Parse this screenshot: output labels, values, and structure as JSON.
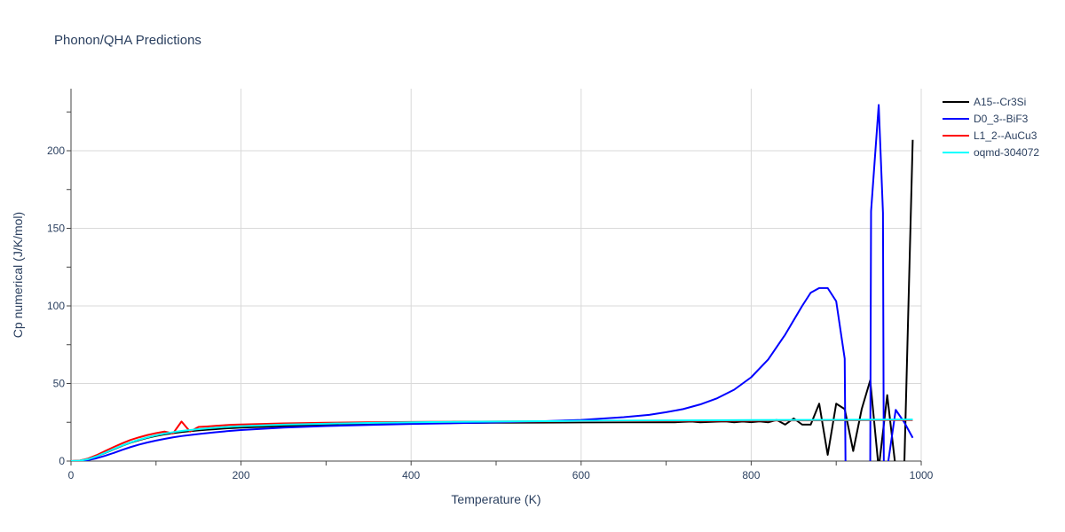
{
  "chart_data": {
    "type": "line",
    "title": "Phonon/QHA Predictions",
    "xlabel": "Temperature (K)",
    "ylabel": "Cp numerical (J/K/mol)",
    "xlim": [
      0,
      1000
    ],
    "ylim": [
      0,
      240
    ],
    "xticks": [
      0,
      200,
      400,
      600,
      800,
      1000
    ],
    "yticks": [
      0,
      50,
      100,
      150,
      200
    ],
    "grid": true,
    "legend_position": "right",
    "series": [
      {
        "name": "A15--Cr3Si",
        "color": "#000000",
        "x": [
          0,
          10,
          20,
          30,
          40,
          50,
          60,
          70,
          80,
          90,
          100,
          110,
          120,
          130,
          140,
          150,
          160,
          170,
          180,
          190,
          200,
          250,
          300,
          350,
          400,
          450,
          500,
          550,
          600,
          650,
          700,
          710,
          720,
          730,
          740,
          750,
          760,
          770,
          780,
          790,
          800,
          810,
          820,
          830,
          840,
          850,
          860,
          870,
          880,
          890,
          900,
          910,
          920,
          930,
          940,
          950,
          960,
          970,
          980,
          990
        ],
        "y": [
          0,
          0.2,
          1.2,
          3.0,
          5.2,
          7.5,
          9.8,
          11.8,
          13.5,
          15.0,
          16.2,
          17.2,
          18.0,
          18.7,
          19.3,
          19.8,
          20.2,
          20.6,
          21.0,
          21.3,
          21.6,
          22.6,
          23.3,
          23.8,
          24.2,
          24.5,
          24.7,
          24.8,
          24.9,
          25.0,
          25.1,
          25.0,
          25.3,
          25.5,
          25.0,
          25.2,
          25.4,
          25.6,
          25.0,
          25.5,
          25.1,
          25.6,
          25.0,
          26.5,
          23.5,
          27.5,
          23.5,
          23.5,
          37.0,
          4.0,
          37.0,
          33.5,
          6.5,
          33.5,
          52.0,
          -5.0,
          42.5,
          -5.0,
          -5.0,
          207.0
        ]
      },
      {
        "name": "D0_3--BiF3",
        "color": "#0000ff",
        "x": [
          0,
          10,
          20,
          30,
          40,
          50,
          60,
          70,
          80,
          90,
          100,
          110,
          120,
          130,
          140,
          150,
          160,
          170,
          180,
          190,
          200,
          250,
          300,
          350,
          400,
          450,
          500,
          550,
          600,
          650,
          680,
          700,
          720,
          740,
          760,
          780,
          800,
          820,
          840,
          860,
          870,
          880,
          890,
          900,
          910,
          911,
          940,
          941,
          950,
          955,
          956,
          960,
          970,
          980,
          990
        ],
        "y": [
          0,
          0.1,
          0.6,
          1.8,
          3.4,
          5.2,
          7.2,
          9.0,
          10.6,
          12.0,
          13.2,
          14.3,
          15.3,
          16.1,
          16.8,
          17.4,
          18.0,
          18.6,
          19.1,
          19.6,
          20.0,
          21.6,
          22.6,
          23.3,
          23.9,
          24.4,
          24.9,
          25.6,
          26.5,
          28.3,
          29.8,
          31.5,
          33.5,
          36.5,
          40.5,
          46.0,
          54.0,
          65.5,
          81.5,
          100.0,
          108.5,
          111.5,
          111.5,
          103.0,
          66.0,
          -5.0,
          -5.0,
          161.0,
          229.5,
          160.0,
          -5.0,
          -5.0,
          33.0,
          25.0,
          15.0
        ]
      },
      {
        "name": "L1_2--AuCu3",
        "color": "#ff0000",
        "x": [
          0,
          10,
          20,
          30,
          40,
          50,
          60,
          70,
          80,
          90,
          100,
          110,
          120,
          130,
          140,
          150,
          160,
          170,
          180,
          190,
          200,
          250,
          300,
          350,
          400,
          450,
          500,
          550,
          600,
          650,
          700,
          750,
          800,
          850,
          900,
          950,
          990
        ],
        "y": [
          0,
          0.3,
          1.6,
          3.8,
          6.4,
          9.0,
          11.4,
          13.6,
          15.3,
          16.8,
          18.0,
          19.0,
          17.8,
          25.5,
          19.0,
          22.0,
          22.3,
          22.7,
          23.1,
          23.4,
          23.6,
          24.3,
          24.7,
          25.0,
          25.2,
          25.4,
          25.5,
          25.6,
          25.7,
          25.8,
          25.9,
          26.0,
          26.1,
          26.2,
          26.3,
          26.4,
          26.4
        ]
      },
      {
        "name": "oqmd-304072",
        "color": "#00ffff",
        "x": [
          0,
          10,
          20,
          30,
          40,
          50,
          60,
          70,
          80,
          90,
          100,
          110,
          120,
          130,
          140,
          150,
          160,
          170,
          180,
          190,
          200,
          250,
          300,
          350,
          400,
          450,
          500,
          550,
          600,
          650,
          700,
          750,
          800,
          850,
          900,
          950,
          990
        ],
        "y": [
          0,
          0.2,
          1.2,
          3.0,
          5.3,
          7.7,
          10.0,
          12.0,
          13.8,
          15.3,
          16.6,
          17.7,
          18.6,
          19.4,
          20.0,
          20.6,
          21.1,
          21.5,
          21.9,
          22.2,
          22.5,
          23.5,
          24.1,
          24.6,
          25.0,
          25.3,
          25.5,
          25.7,
          25.9,
          26.1,
          26.2,
          26.3,
          26.4,
          26.5,
          26.6,
          26.7,
          26.8
        ]
      }
    ]
  }
}
